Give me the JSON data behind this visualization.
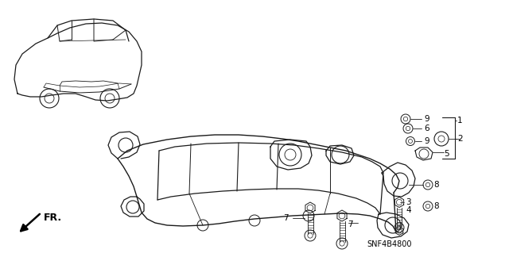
{
  "bg_color": "#ffffff",
  "line_color": "#1a1a1a",
  "part_number": "SNF4B4800",
  "fr_label": "FR.",
  "fig_width": 6.4,
  "fig_height": 3.19,
  "dpi": 100
}
